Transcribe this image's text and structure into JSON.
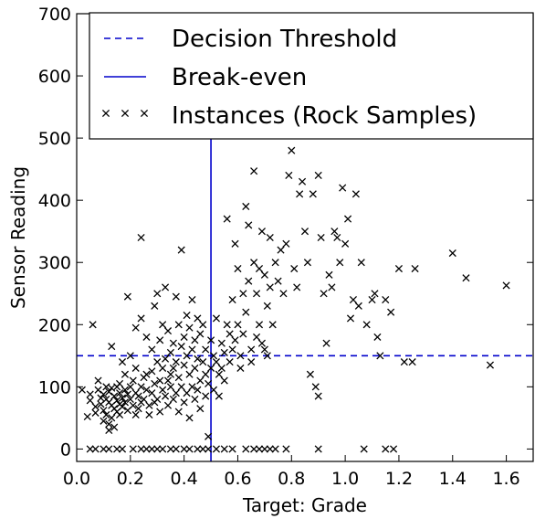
{
  "chart_data": {
    "type": "scatter",
    "title": "",
    "xlabel": "Target: Grade",
    "ylabel": "Sensor Reading",
    "xlim": [
      0.0,
      1.7
    ],
    "ylim": [
      -20,
      700
    ],
    "xticks": [
      "0.0",
      "0.2",
      "0.4",
      "0.6",
      "0.8",
      "1.0",
      "1.2",
      "1.4",
      "1.6"
    ],
    "yticks": [
      "0",
      "100",
      "200",
      "300",
      "400",
      "500",
      "600",
      "700"
    ],
    "grid": false,
    "legend_position": "top-right",
    "lines": [
      {
        "name": "Decision Threshold",
        "orientation": "horizontal",
        "value": 150,
        "style": "dashed",
        "color": "#0000cc"
      },
      {
        "name": "Break-even",
        "orientation": "vertical",
        "value": 0.5,
        "style": "solid",
        "color": "#0000cc"
      }
    ],
    "series": [
      {
        "name": "Instances (Rock Samples)",
        "marker": "x",
        "color": "#000000",
        "points": [
          [
            0.02,
            95
          ],
          [
            0.04,
            52
          ],
          [
            0.05,
            88
          ],
          [
            0.05,
            78
          ],
          [
            0.06,
            200
          ],
          [
            0.07,
            58
          ],
          [
            0.07,
            68
          ],
          [
            0.08,
            110
          ],
          [
            0.08,
            95
          ],
          [
            0.09,
            82
          ],
          [
            0.09,
            72
          ],
          [
            0.1,
            88
          ],
          [
            0.1,
            62
          ],
          [
            0.1,
            45
          ],
          [
            0.11,
            100
          ],
          [
            0.11,
            80
          ],
          [
            0.11,
            55
          ],
          [
            0.12,
            92
          ],
          [
            0.12,
            75
          ],
          [
            0.12,
            40
          ],
          [
            0.12,
            30
          ],
          [
            0.13,
            165
          ],
          [
            0.13,
            98
          ],
          [
            0.13,
            70
          ],
          [
            0.13,
            50
          ],
          [
            0.14,
            85
          ],
          [
            0.14,
            65
          ],
          [
            0.14,
            35
          ],
          [
            0.15,
            100
          ],
          [
            0.15,
            78
          ],
          [
            0.15,
            60
          ],
          [
            0.16,
            105
          ],
          [
            0.16,
            90
          ],
          [
            0.16,
            72
          ],
          [
            0.16,
            55
          ],
          [
            0.17,
            140
          ],
          [
            0.17,
            82
          ],
          [
            0.17,
            68
          ],
          [
            0.18,
            120
          ],
          [
            0.18,
            95
          ],
          [
            0.18,
            75
          ],
          [
            0.19,
            245
          ],
          [
            0.19,
            88
          ],
          [
            0.19,
            62
          ],
          [
            0.2,
            150
          ],
          [
            0.2,
            100
          ],
          [
            0.2,
            80
          ],
          [
            0.21,
            110
          ],
          [
            0.21,
            70
          ],
          [
            0.22,
            195
          ],
          [
            0.22,
            130
          ],
          [
            0.22,
            90
          ],
          [
            0.22,
            55
          ],
          [
            0.23,
            85
          ],
          [
            0.23,
            65
          ],
          [
            0.24,
            340
          ],
          [
            0.24,
            210
          ],
          [
            0.24,
            100
          ],
          [
            0.24,
            75
          ],
          [
            0.25,
            115
          ],
          [
            0.25,
            80
          ],
          [
            0.26,
            180
          ],
          [
            0.26,
            120
          ],
          [
            0.26,
            95
          ],
          [
            0.27,
            70
          ],
          [
            0.27,
            55
          ],
          [
            0.28,
            160
          ],
          [
            0.28,
            125
          ],
          [
            0.28,
            90
          ],
          [
            0.29,
            230
          ],
          [
            0.29,
            105
          ],
          [
            0.29,
            75
          ],
          [
            0.3,
            250
          ],
          [
            0.3,
            140
          ],
          [
            0.3,
            80
          ],
          [
            0.31,
            175
          ],
          [
            0.31,
            110
          ],
          [
            0.31,
            60
          ],
          [
            0.32,
            200
          ],
          [
            0.32,
            130
          ],
          [
            0.32,
            95
          ],
          [
            0.33,
            260
          ],
          [
            0.33,
            145
          ],
          [
            0.33,
            85
          ],
          [
            0.34,
            190
          ],
          [
            0.34,
            110
          ],
          [
            0.34,
            70
          ],
          [
            0.35,
            155
          ],
          [
            0.35,
            120
          ],
          [
            0.35,
            100
          ],
          [
            0.36,
            170
          ],
          [
            0.36,
            130
          ],
          [
            0.36,
            80
          ],
          [
            0.37,
            245
          ],
          [
            0.37,
            140
          ],
          [
            0.37,
            90
          ],
          [
            0.38,
            200
          ],
          [
            0.38,
            115
          ],
          [
            0.38,
            60
          ],
          [
            0.39,
            320
          ],
          [
            0.39,
            165
          ],
          [
            0.39,
            100
          ],
          [
            0.4,
            180
          ],
          [
            0.4,
            135
          ],
          [
            0.4,
            75
          ],
          [
            0.41,
            215
          ],
          [
            0.41,
            150
          ],
          [
            0.41,
            90
          ],
          [
            0.42,
            195
          ],
          [
            0.42,
            120
          ],
          [
            0.42,
            50
          ],
          [
            0.43,
            240
          ],
          [
            0.43,
            160
          ],
          [
            0.43,
            100
          ],
          [
            0.44,
            175
          ],
          [
            0.44,
            130
          ],
          [
            0.44,
            80
          ],
          [
            0.45,
            210
          ],
          [
            0.45,
            145
          ],
          [
            0.45,
            95
          ],
          [
            0.46,
            185
          ],
          [
            0.46,
            110
          ],
          [
            0.46,
            65
          ],
          [
            0.47,
            200
          ],
          [
            0.47,
            140
          ],
          [
            0.48,
            160
          ],
          [
            0.48,
            120
          ],
          [
            0.48,
            85
          ],
          [
            0.49,
            20
          ],
          [
            0.49,
            105
          ],
          [
            0.5,
            175
          ],
          [
            0.5,
            130
          ],
          [
            0.51,
            150
          ],
          [
            0.51,
            95
          ],
          [
            0.52,
            210
          ],
          [
            0.52,
            140
          ],
          [
            0.53,
            120
          ],
          [
            0.53,
            85
          ],
          [
            0.54,
            170
          ],
          [
            0.54,
            130
          ],
          [
            0.55,
            155
          ],
          [
            0.55,
            110
          ],
          [
            0.56,
            370
          ],
          [
            0.56,
            200
          ],
          [
            0.57,
            185
          ],
          [
            0.57,
            140
          ],
          [
            0.58,
            240
          ],
          [
            0.58,
            160
          ],
          [
            0.59,
            330
          ],
          [
            0.59,
            175
          ],
          [
            0.6,
            290
          ],
          [
            0.6,
            200
          ],
          [
            0.61,
            150
          ],
          [
            0.61,
            130
          ],
          [
            0.62,
            250
          ],
          [
            0.62,
            185
          ],
          [
            0.63,
            390
          ],
          [
            0.63,
            220
          ],
          [
            0.64,
            360
          ],
          [
            0.64,
            270
          ],
          [
            0.65,
            160
          ],
          [
            0.65,
            140
          ],
          [
            0.66,
            447
          ],
          [
            0.66,
            300
          ],
          [
            0.67,
            250
          ],
          [
            0.67,
            180
          ],
          [
            0.68,
            290
          ],
          [
            0.68,
            200
          ],
          [
            0.69,
            350
          ],
          [
            0.69,
            170
          ],
          [
            0.7,
            280
          ],
          [
            0.7,
            160
          ],
          [
            0.71,
            230
          ],
          [
            0.71,
            150
          ],
          [
            0.72,
            340
          ],
          [
            0.72,
            260
          ],
          [
            0.73,
            200
          ],
          [
            0.74,
            300
          ],
          [
            0.75,
            270
          ],
          [
            0.76,
            320
          ],
          [
            0.77,
            250
          ],
          [
            0.78,
            330
          ],
          [
            0.79,
            440
          ],
          [
            0.8,
            480
          ],
          [
            0.81,
            290
          ],
          [
            0.82,
            260
          ],
          [
            0.83,
            410
          ],
          [
            0.84,
            430
          ],
          [
            0.85,
            350
          ],
          [
            0.86,
            300
          ],
          [
            0.87,
            120
          ],
          [
            0.88,
            410
          ],
          [
            0.89,
            100
          ],
          [
            0.9,
            440
          ],
          [
            0.9,
            85
          ],
          [
            0.91,
            340
          ],
          [
            0.92,
            250
          ],
          [
            0.93,
            170
          ],
          [
            0.94,
            280
          ],
          [
            0.95,
            260
          ],
          [
            0.96,
            350
          ],
          [
            0.97,
            340
          ],
          [
            0.98,
            300
          ],
          [
            0.99,
            420
          ],
          [
            1.0,
            330
          ],
          [
            1.01,
            370
          ],
          [
            1.02,
            210
          ],
          [
            1.03,
            240
          ],
          [
            1.04,
            410
          ],
          [
            1.05,
            230
          ],
          [
            1.06,
            300
          ],
          [
            1.08,
            200
          ],
          [
            1.1,
            240
          ],
          [
            1.11,
            250
          ],
          [
            1.12,
            180
          ],
          [
            1.13,
            150
          ],
          [
            1.15,
            240
          ],
          [
            1.17,
            220
          ],
          [
            1.2,
            290
          ],
          [
            1.22,
            140
          ],
          [
            1.25,
            140
          ],
          [
            1.26,
            290
          ],
          [
            1.4,
            315
          ],
          [
            1.45,
            275
          ],
          [
            1.54,
            135
          ],
          [
            1.6,
            263
          ],
          [
            0.05,
            0
          ],
          [
            0.07,
            0
          ],
          [
            0.1,
            0
          ],
          [
            0.12,
            0
          ],
          [
            0.15,
            0
          ],
          [
            0.17,
            0
          ],
          [
            0.21,
            0
          ],
          [
            0.24,
            0
          ],
          [
            0.26,
            0
          ],
          [
            0.28,
            0
          ],
          [
            0.3,
            0
          ],
          [
            0.32,
            0
          ],
          [
            0.35,
            0
          ],
          [
            0.37,
            0
          ],
          [
            0.4,
            0
          ],
          [
            0.42,
            0
          ],
          [
            0.45,
            0
          ],
          [
            0.47,
            0
          ],
          [
            0.49,
            0
          ],
          [
            0.52,
            0
          ],
          [
            0.55,
            0
          ],
          [
            0.58,
            0
          ],
          [
            0.63,
            0
          ],
          [
            0.66,
            0
          ],
          [
            0.68,
            0
          ],
          [
            0.7,
            0
          ],
          [
            0.72,
            0
          ],
          [
            0.74,
            0
          ],
          [
            0.78,
            0
          ],
          [
            0.9,
            0
          ],
          [
            1.07,
            0
          ],
          [
            1.15,
            0
          ],
          [
            1.18,
            0
          ]
        ]
      }
    ]
  }
}
